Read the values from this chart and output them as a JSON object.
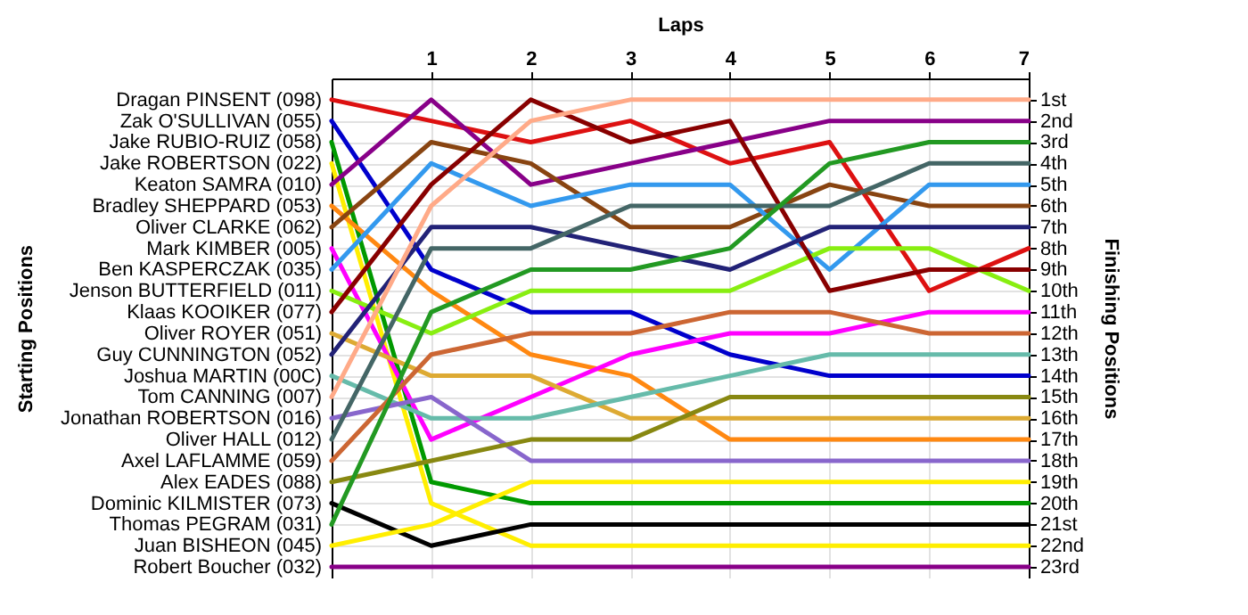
{
  "chart_data": {
    "type": "line",
    "xlabel": "Laps",
    "annotations": [
      "Starting Positions"
    ],
    "y2label": "Finishing Positions",
    "x": [
      0,
      1,
      2,
      3,
      4,
      5,
      6,
      7
    ],
    "xlim": [
      0,
      7
    ],
    "xticks": [
      1,
      2,
      3,
      4,
      5,
      6,
      7
    ],
    "y2lim": [
      23.5,
      0
    ],
    "y2ticks": [
      {
        "value": 1,
        "label": "1st"
      },
      {
        "value": 2,
        "label": "2nd"
      },
      {
        "value": 3,
        "label": "3rd"
      },
      {
        "value": 4,
        "label": "4th"
      },
      {
        "value": 5,
        "label": "5th"
      },
      {
        "value": 6,
        "label": "6th"
      },
      {
        "value": 7,
        "label": "7th"
      },
      {
        "value": 8,
        "label": "8th"
      },
      {
        "value": 9,
        "label": "9th"
      },
      {
        "value": 10,
        "label": "10th"
      },
      {
        "value": 11,
        "label": "11th"
      },
      {
        "value": 12,
        "label": "12th"
      },
      {
        "value": 13,
        "label": "13th"
      },
      {
        "value": 14,
        "label": "14th"
      },
      {
        "value": 15,
        "label": "15th"
      },
      {
        "value": 16,
        "label": "16th"
      },
      {
        "value": 17,
        "label": "17th"
      },
      {
        "value": 18,
        "label": "18th"
      },
      {
        "value": 19,
        "label": "19th"
      },
      {
        "value": 20,
        "label": "20th"
      },
      {
        "value": 21,
        "label": "21st"
      },
      {
        "value": 22,
        "label": "22nd"
      },
      {
        "value": 23,
        "label": "23rd"
      }
    ],
    "grid": true,
    "legend": "left",
    "marker": "none",
    "line_style": "solid",
    "series": [
      {
        "name": "Dragan PINSENT (098)",
        "axis": "y2",
        "color": "#dd1111",
        "values": [
          1,
          2,
          3,
          2,
          4,
          3,
          10,
          8
        ]
      },
      {
        "name": "Zak O'SULLIVAN (055)",
        "axis": "y2",
        "color": "#0000cc",
        "values": [
          2,
          9,
          11,
          11,
          13,
          14,
          14,
          14
        ]
      },
      {
        "name": "Jake RUBIO-RUIZ (058)",
        "axis": "y2",
        "color": "#009900",
        "values": [
          3,
          19,
          20,
          20,
          20,
          20,
          20,
          20
        ]
      },
      {
        "name": "Jake ROBERTSON (022)",
        "axis": "y2",
        "color": "#ffee00",
        "values": [
          4,
          20,
          22,
          22,
          22,
          22,
          22,
          22
        ]
      },
      {
        "name": "Keaton SAMRA (010)",
        "axis": "y2",
        "color": "#880088",
        "values": [
          5,
          1,
          5,
          4,
          3,
          2,
          2,
          2
        ]
      },
      {
        "name": "Bradley SHEPPARD (053)",
        "axis": "y2",
        "color": "#ff8811",
        "values": [
          6,
          10,
          13,
          14,
          17,
          17,
          17,
          17
        ]
      },
      {
        "name": "Oliver CLARKE (062)",
        "axis": "y2",
        "color": "#884411",
        "values": [
          7,
          3,
          4,
          7,
          7,
          5,
          6,
          6
        ]
      },
      {
        "name": "Mark KIMBER (005)",
        "axis": "y2",
        "color": "#ff00ff",
        "values": [
          8,
          17,
          15,
          13,
          12,
          12,
          11,
          11
        ]
      },
      {
        "name": "Ben KASPERCZAK (035)",
        "axis": "y2",
        "color": "#3399ee",
        "values": [
          9,
          4,
          6,
          5,
          5,
          9,
          5,
          5
        ]
      },
      {
        "name": "Jenson BUTTERFIELD (011)",
        "axis": "y2",
        "color": "#88ee11",
        "values": [
          10,
          12,
          10,
          10,
          10,
          8,
          8,
          10
        ]
      },
      {
        "name": "Klaas KOOIKER (077)",
        "axis": "y2",
        "color": "#880000",
        "values": [
          11,
          5,
          1,
          3,
          2,
          10,
          9,
          9
        ]
      },
      {
        "name": "Oliver ROYER (051)",
        "axis": "y2",
        "color": "#ddaa33",
        "values": [
          12,
          14,
          14,
          16,
          16,
          16,
          16,
          16
        ]
      },
      {
        "name": "Guy CUNNINGTON (052)",
        "axis": "y2",
        "color": "#222277",
        "values": [
          13,
          7,
          7,
          8,
          9,
          7,
          7,
          7
        ]
      },
      {
        "name": "Joshua MARTIN (00C)",
        "axis": "y2",
        "color": "#66bbaa",
        "values": [
          14,
          16,
          16,
          15,
          14,
          13,
          13,
          13
        ]
      },
      {
        "name": "Tom CANNING (007)",
        "axis": "y2",
        "color": "#ffaa88",
        "values": [
          15,
          6,
          2,
          1,
          1,
          1,
          1,
          1
        ]
      },
      {
        "name": "Jonathan ROBERTSON (016)",
        "axis": "y2",
        "color": "#8866cc",
        "values": [
          16,
          15,
          18,
          18,
          18,
          18,
          18,
          18
        ]
      },
      {
        "name": "Oliver HALL (012)",
        "axis": "y2",
        "color": "#446666",
        "values": [
          17,
          8,
          8,
          6,
          6,
          6,
          4,
          4
        ]
      },
      {
        "name": "Axel LAFLAMME (059)",
        "axis": "y2",
        "color": "#cc6633",
        "values": [
          18,
          13,
          12,
          12,
          11,
          11,
          12,
          12
        ]
      },
      {
        "name": "Alex EADES (088)",
        "axis": "y2",
        "color": "#888811",
        "values": [
          19,
          18,
          17,
          17,
          15,
          15,
          15,
          15
        ]
      },
      {
        "name": "Dominic KILMISTER (073)",
        "axis": "y2",
        "color": "#000000",
        "values": [
          20,
          22,
          21,
          21,
          21,
          21,
          21,
          21
        ]
      },
      {
        "name": "Thomas PEGRAM (031)",
        "axis": "y2",
        "color": "#229922",
        "values": [
          21,
          11,
          9,
          9,
          8,
          4,
          3,
          3
        ]
      },
      {
        "name": "Juan BISHEON (045)",
        "axis": "y2",
        "color": "#ffee00",
        "values": [
          22,
          21,
          19,
          19,
          19,
          19,
          19,
          19
        ]
      },
      {
        "name": "Robert Boucher (032)",
        "axis": "y2",
        "color": "#880088",
        "values": [
          23,
          23,
          23,
          23,
          23,
          23,
          23,
          23
        ]
      }
    ]
  }
}
